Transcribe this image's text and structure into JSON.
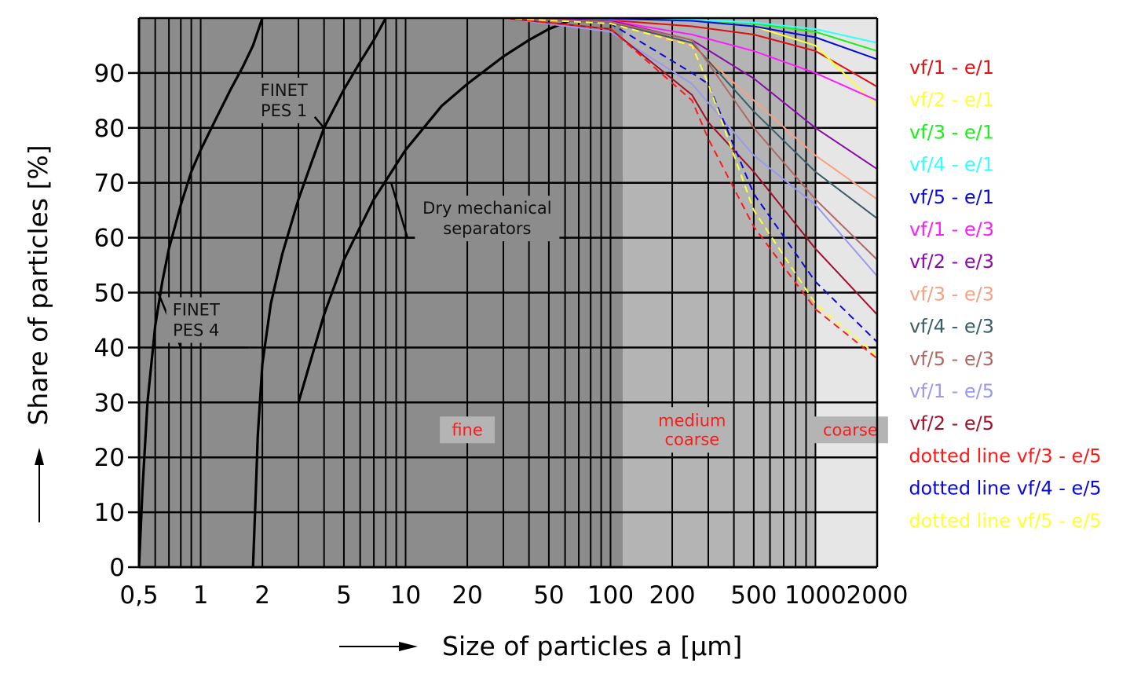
{
  "chart_data": {
    "type": "line",
    "xlabel": "Size of particles a [μm]",
    "ylabel": "Share of particles [%]",
    "x_scale": "log",
    "xlim": [
      0.5,
      2000
    ],
    "ylim": [
      0,
      100
    ],
    "x_ticks": [
      0.5,
      1,
      2,
      5,
      10,
      20,
      50,
      100,
      200,
      500,
      1000,
      2000
    ],
    "x_tick_labels": [
      "0,5",
      "1",
      "2",
      "5",
      "10",
      "20",
      "50",
      "100",
      "200",
      "500",
      "1000",
      "2000"
    ],
    "y_ticks": [
      0,
      10,
      20,
      30,
      40,
      50,
      60,
      70,
      80,
      90
    ],
    "y_tick_labels": [
      "0",
      "10",
      "20",
      "30",
      "40",
      "50",
      "60",
      "70",
      "80",
      "90"
    ],
    "grid": true,
    "regions": [
      {
        "name": "fine",
        "x": [
          0.5,
          115
        ],
        "color": "#8c8c8c"
      },
      {
        "name": "medium coarse",
        "x": [
          115,
          1000
        ],
        "color": "#b4b4b4"
      },
      {
        "name": "coarse",
        "x": [
          1000,
          2000
        ],
        "color": "#e6e6e6"
      }
    ],
    "region_labels": [
      {
        "lines": [
          "fine"
        ],
        "x": 20,
        "y": 25
      },
      {
        "lines": [
          "medium",
          "coarse"
        ],
        "x": 250,
        "y": 25
      },
      {
        "lines": [
          "coarse"
        ],
        "x": 1480,
        "y": 25
      }
    ],
    "curve_labels": [
      {
        "lines": [
          "FINET",
          "PES 1"
        ],
        "x": 2.55,
        "y": 85
      },
      {
        "lines": [
          "FINET",
          "PES 4"
        ],
        "x": 0.95,
        "y": 45
      },
      {
        "lines": [
          "Dry mechanical",
          "separators"
        ],
        "x": 25,
        "y": 63.5
      }
    ],
    "envelope_curves": [
      {
        "name": "FINET PES 4",
        "x": [
          0.5,
          0.52,
          0.55,
          0.6,
          0.65,
          0.7,
          0.8,
          0.9,
          1.0,
          1.2,
          1.4,
          1.6,
          1.8,
          2.0
        ],
        "y": [
          0,
          14,
          30,
          44,
          52,
          58,
          66,
          72,
          76,
          82,
          87,
          91,
          95,
          100
        ]
      },
      {
        "name": "FINET PES 1",
        "x": [
          1.8,
          1.85,
          1.9,
          2.0,
          2.2,
          2.5,
          3.0,
          3.5,
          4.0,
          5.0,
          6.0,
          7.0,
          8.0
        ],
        "y": [
          0,
          12,
          24,
          37,
          48,
          57,
          67,
          74,
          80,
          87,
          92,
          96,
          100
        ]
      },
      {
        "name": "Dry mechanical separators",
        "x": [
          3.0,
          4.0,
          5.0,
          7.0,
          10,
          15,
          20,
          30,
          40,
          50,
          63
        ],
        "y": [
          30,
          46,
          56,
          67,
          76,
          84,
          88,
          93,
          96,
          98,
          99.5
        ]
      }
    ],
    "leader_lines": [
      {
        "x": [
          4.0,
          3.6
        ],
        "y": [
          80,
          82
        ]
      },
      {
        "x": [
          0.62,
          0.8,
          1.7
        ],
        "y": [
          50,
          40,
          40
        ]
      },
      {
        "x": [
          8.5,
          10.2,
          50
        ],
        "y": [
          70,
          60,
          60
        ]
      }
    ],
    "series": [
      {
        "name": "vf/1 - e/1",
        "color": "#e01010",
        "dash": false,
        "x": [
          30,
          100,
          250,
          500,
          1000,
          2000
        ],
        "y": [
          100,
          99.6,
          98.5,
          97,
          94,
          87.5
        ]
      },
      {
        "name": "vf/2 - e/1",
        "color": "#ffff33",
        "dash": false,
        "x": [
          30,
          100,
          250,
          500,
          1000,
          2000
        ],
        "y": [
          100,
          99.8,
          99.5,
          98.5,
          95,
          84
        ]
      },
      {
        "name": "vf/3 - e/1",
        "color": "#1aef1a",
        "dash": false,
        "x": [
          30,
          100,
          250,
          500,
          1000,
          2000
        ],
        "y": [
          100,
          99.9,
          99.7,
          99,
          97.5,
          94
        ]
      },
      {
        "name": "vf/4 - e/1",
        "color": "#33ffff",
        "dash": false,
        "x": [
          30,
          100,
          250,
          500,
          1000,
          2000
        ],
        "y": [
          100,
          99.9,
          99.7,
          99.2,
          98,
          95.5
        ]
      },
      {
        "name": "vf/5 - e/1",
        "color": "#0a0ad8",
        "dash": false,
        "x": [
          30,
          100,
          250,
          500,
          1000,
          2000
        ],
        "y": [
          100,
          99.9,
          99.5,
          98.5,
          96.5,
          92.5
        ]
      },
      {
        "name": "vf/1 - e/3",
        "color": "#ff1aff",
        "dash": false,
        "x": [
          30,
          100,
          250,
          500,
          1000,
          2000
        ],
        "y": [
          100,
          99.5,
          97,
          94,
          90,
          85
        ]
      },
      {
        "name": "vf/2 - e/3",
        "color": "#8b0aa8",
        "dash": false,
        "x": [
          30,
          100,
          250,
          500,
          1000,
          2000
        ],
        "y": [
          100,
          99.5,
          96,
          89,
          80,
          72.5
        ]
      },
      {
        "name": "vf/3 - e/3",
        "color": "#f5a282",
        "dash": false,
        "x": [
          30,
          100,
          250,
          500,
          1000,
          2000
        ],
        "y": [
          100,
          99.3,
          95,
          85,
          75,
          67
        ]
      },
      {
        "name": "vf/4 - e/3",
        "color": "#3a5e66",
        "dash": false,
        "x": [
          30,
          100,
          250,
          500,
          1000,
          2000
        ],
        "y": [
          100,
          99.2,
          95.5,
          83,
          72,
          63.5
        ]
      },
      {
        "name": "vf/5 - e/3",
        "color": "#b06a64",
        "dash": false,
        "x": [
          30,
          100,
          250,
          500,
          1000,
          2000
        ],
        "y": [
          100,
          99.3,
          96,
          80,
          67,
          56
        ]
      },
      {
        "name": "vf/1 - e/5",
        "color": "#9999ee",
        "dash": false,
        "x": [
          30,
          100,
          250,
          500,
          1000,
          2000
        ],
        "y": [
          100,
          97.5,
          88,
          75,
          66,
          53
        ]
      },
      {
        "name": "vf/2 - e/5",
        "color": "#a0102a",
        "dash": false,
        "x": [
          30,
          100,
          250,
          300,
          500,
          1000,
          2000
        ],
        "y": [
          100,
          98,
          86,
          81,
          72,
          58,
          46
        ]
      },
      {
        "name": "dotted line vf/3 - e/5",
        "color": "#ff1a1a",
        "dash": true,
        "x": [
          30,
          100,
          250,
          300,
          500,
          1000,
          2000
        ],
        "y": [
          100,
          98,
          85,
          78,
          62,
          47,
          38
        ]
      },
      {
        "name": "dotted line vf/4 - e/5",
        "color": "#0a0ad8",
        "dash": true,
        "x": [
          30,
          100,
          250,
          300,
          500,
          1000,
          2000
        ],
        "y": [
          100,
          99,
          90,
          88,
          68,
          52,
          41
        ]
      },
      {
        "name": "dotted line vf/5 - e/5",
        "color": "#ffff33",
        "dash": true,
        "x": [
          30,
          100,
          250,
          300,
          500,
          1000,
          2000
        ],
        "y": [
          100,
          99,
          95,
          88,
          65,
          48,
          38.5
        ]
      }
    ]
  }
}
